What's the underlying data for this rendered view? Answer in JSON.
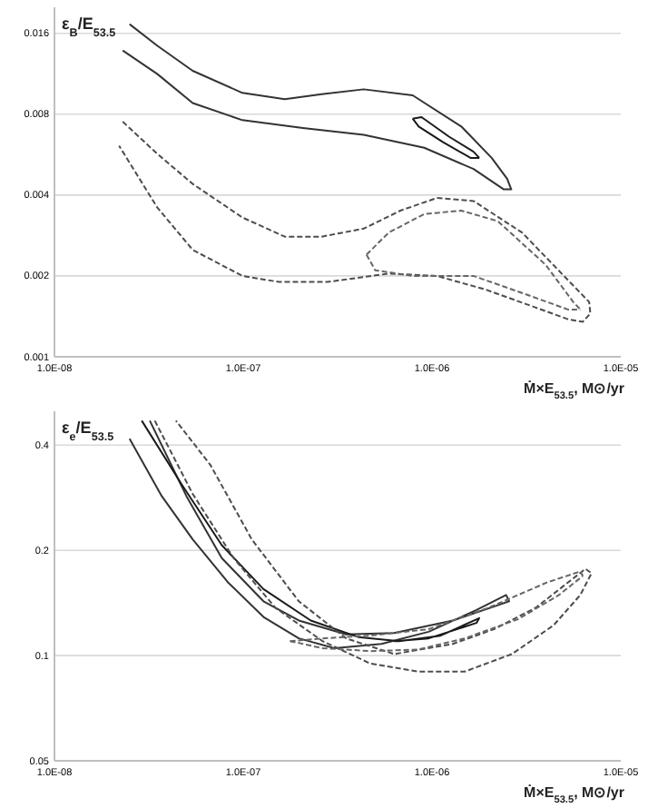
{
  "chart_data": [
    {
      "type": "line",
      "ylabel": "ε$_{B}$/E$_{53.5}$",
      "xlabel": "Ṁ×E$_{53.5}$, M⊙/yr",
      "log": "xy",
      "grid": "y",
      "marker": "none",
      "xlim": [
        1e-08,
        1e-05
      ],
      "xticks": [
        {
          "value": 1e-08,
          "label": "1.0E-08"
        },
        {
          "value": 1e-07,
          "label": "1.0E-07"
        },
        {
          "value": 1e-06,
          "label": "1.0E-06"
        },
        {
          "value": 1e-05,
          "label": "1.0E-05"
        }
      ],
      "ylim": [
        0.001,
        0.02
      ],
      "yticks": [
        0.001,
        0.002,
        0.004,
        0.008,
        0.016
      ],
      "series": [
        {
          "color": "#333333",
          "line_style": "solid",
          "x": [
            2.5e-08,
            3.5e-08,
            5.4e-08,
            9.9e-08,
            1.66e-07,
            2.6e-07,
            4.35e-07,
            7.9e-07,
            1.43e-06,
            2.07e-06,
            2.5e-06,
            2.63e-06,
            2.4e-06,
            1.66e-06,
            9.1e-07,
            4.35e-07,
            2.07e-07,
            9.9e-08,
            5.4e-08,
            3.5e-08,
            2.3e-08
          ],
          "values": [
            0.0173,
            0.0144,
            0.0116,
            0.0096,
            0.0091,
            0.0095,
            0.0099,
            0.0094,
            0.0072,
            0.0055,
            0.0046,
            0.0042,
            0.0042,
            0.005,
            0.006,
            0.0067,
            0.0071,
            0.0076,
            0.0088,
            0.0113,
            0.0138
          ]
        },
        {
          "color": "#1a1a1a",
          "line_style": "solid",
          "x": [
            7.9e-07,
            8.8e-07,
            1.23e-06,
            1.66e-06,
            1.78e-06
          ],
          "values": [
            0.0077,
            0.0078,
            0.0066,
            0.0058,
            0.0055
          ]
        },
        {
          "color": "#1a1a1a",
          "line_style": "solid",
          "x": [
            7.9e-07,
            8.5e-07,
            1.14e-06,
            1.6e-06,
            1.78e-06
          ],
          "values": [
            0.0077,
            0.0072,
            0.0063,
            0.0055,
            0.0055
          ]
        },
        {
          "color": "#4d4d4d",
          "line_style": "dashed",
          "x": [
            2.3e-08,
            3.5e-08,
            5.4e-08,
            9.9e-08,
            1.66e-07,
            2.6e-07,
            4.35e-07,
            6.8e-07,
            1.06e-06,
            1.66e-06,
            3e-06,
            5e-06,
            6.8e-06,
            6.9e-06,
            6.3e-06,
            5.25e-06,
            3.5e-06,
            1.92e-06,
            1.06e-06,
            5.9e-07,
            2.8e-07,
            1.54e-07,
            9.9e-08,
            5.4e-08,
            3.5e-08,
            2.2e-08
          ],
          "values": [
            0.0075,
            0.0057,
            0.0044,
            0.0033,
            0.0028,
            0.0028,
            0.003,
            0.0035,
            0.0039,
            0.0038,
            0.0029,
            0.002,
            0.0016,
            0.00145,
            0.00135,
            0.00138,
            0.00153,
            0.00178,
            0.002,
            0.00204,
            0.0019,
            0.0019,
            0.002,
            0.0025,
            0.0036,
            0.0061
          ]
        },
        {
          "color": "#666666",
          "line_style": "dashed",
          "x": [
            4.5e-07,
            5.9e-07,
            9.1e-07,
            1.43e-06,
            2.23e-06,
            4e-06,
            5.6e-06,
            6.1e-06
          ],
          "values": [
            0.0024,
            0.0029,
            0.0034,
            0.0035,
            0.0032,
            0.0022,
            0.0016,
            0.0015
          ]
        },
        {
          "color": "#666666",
          "line_style": "dashed",
          "x": [
            4.5e-07,
            5e-07,
            7.9e-07,
            1.66e-06,
            3.2e-06,
            5.25e-06,
            6.1e-06
          ],
          "values": [
            0.0024,
            0.0021,
            0.002,
            0.002,
            0.0017,
            0.0015,
            0.0015
          ]
        }
      ]
    },
    {
      "type": "line",
      "ylabel": "ε$_{e}$/E$_{53.5}$",
      "xlabel": "Ṁ×E$_{53.5}$, M⊙/yr",
      "log": "xy",
      "grid": "y",
      "marker": "none",
      "xlim": [
        1e-08,
        1e-05
      ],
      "xticks": [
        {
          "value": 1e-08,
          "label": "1.0E-08"
        },
        {
          "value": 1e-07,
          "label": "1.0E-07"
        },
        {
          "value": 1e-06,
          "label": "1.0E-06"
        },
        {
          "value": 1e-05,
          "label": "1.0E-05"
        }
      ],
      "ylim": [
        0.05,
        0.5
      ],
      "yticks": [
        0.05,
        0.1,
        0.2,
        0.4
      ],
      "series": [
        {
          "color": "#333333",
          "line_style": "solid",
          "x": [
            2.5e-08,
            3.7e-08,
            5.4e-08,
            8.3e-08,
            1.28e-07,
            1.97e-07,
            3.04e-07,
            5.4e-07,
            9.6e-07,
            1.72e-06,
            2.47e-06,
            2.56e-06,
            2.29e-06,
            1.29e-06,
            6.3e-07,
            3.51e-07,
            1.97e-07,
            1.28e-07,
            7.7e-08,
            5e-08,
            3.2e-08
          ],
          "values": [
            0.417,
            0.286,
            0.215,
            0.162,
            0.129,
            0.112,
            0.105,
            0.108,
            0.117,
            0.135,
            0.149,
            0.143,
            0.14,
            0.126,
            0.116,
            0.115,
            0.126,
            0.143,
            0.19,
            0.286,
            0.47
          ]
        },
        {
          "color": "#1a1a1a",
          "line_style": "solid",
          "x": [
            2.9e-08,
            4.7e-08,
            7.7e-08,
            1.28e-07,
            2.28e-07,
            4.06e-07,
            6.7e-07,
            1.11e-06,
            1.78e-06,
            1.72e-06,
            9.6e-07,
            6.3e-07
          ],
          "values": [
            0.47,
            0.31,
            0.207,
            0.155,
            0.126,
            0.113,
            0.11,
            0.114,
            0.128,
            0.124,
            0.112,
            0.11
          ]
        },
        {
          "color": "#4d4d4d",
          "line_style": "dashed",
          "x": [
            3.4e-08,
            5.4e-08,
            8.9e-08,
            1.48e-07,
            2.63e-07,
            4.69e-07,
            8.4e-07,
            1.49e-06,
            2.65e-06,
            4.4e-06,
            6.1e-06,
            7e-06,
            6.5e-06,
            5.5e-06,
            3.54e-06,
            2.13e-06,
            1.29e-06,
            6.3e-07,
            3.51e-07,
            1.97e-07,
            1.11e-07,
            6.7e-08,
            4.4e-08
          ],
          "values": [
            0.47,
            0.29,
            0.19,
            0.137,
            0.11,
            0.095,
            0.09,
            0.09,
            0.101,
            0.122,
            0.149,
            0.172,
            0.177,
            0.165,
            0.137,
            0.119,
            0.108,
            0.101,
            0.112,
            0.143,
            0.215,
            0.351,
            0.47
          ]
        },
        {
          "color": "#666666",
          "line_style": "dashed",
          "x": [
            1.77e-07,
            2.63e-07,
            4.69e-07,
            9.6e-07,
            1.99e-06,
            4.08e-06,
            6.1e-06,
            6.3e-06
          ],
          "values": [
            0.11,
            0.112,
            0.114,
            0.119,
            0.137,
            0.162,
            0.174,
            0.169
          ]
        },
        {
          "color": "#666666",
          "line_style": "dashed",
          "x": [
            1.77e-07,
            2.63e-07,
            4.69e-07,
            8.4e-07,
            1.49e-06,
            2.85e-06,
            4.7e-06,
            6.3e-06
          ],
          "values": [
            0.11,
            0.105,
            0.103,
            0.104,
            0.112,
            0.127,
            0.149,
            0.169
          ]
        }
      ]
    }
  ]
}
